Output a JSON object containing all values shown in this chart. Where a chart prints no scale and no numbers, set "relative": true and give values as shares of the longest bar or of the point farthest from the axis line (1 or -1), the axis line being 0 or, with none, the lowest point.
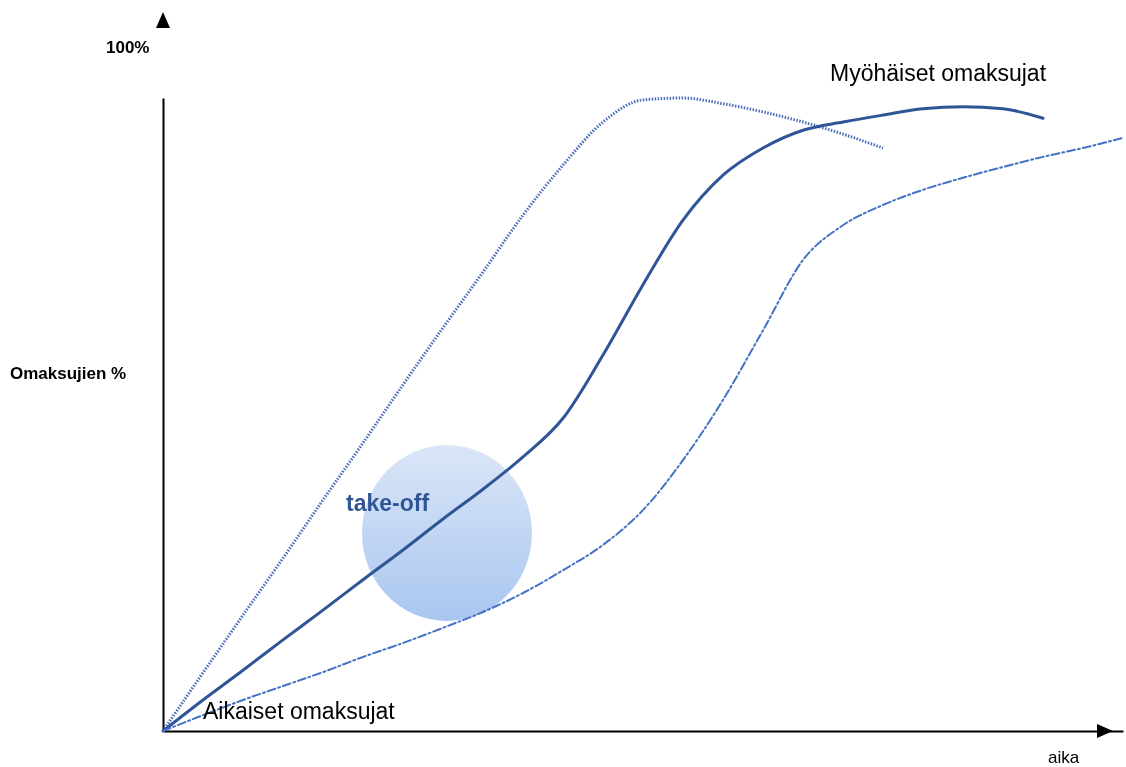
{
  "chart_data": {
    "type": "line",
    "relative": true,
    "ylabel": "Omaksujien %",
    "xlabel": "aika",
    "marker": "none",
    "annotations": [
      "100%",
      "Myöhäiset omaksujat",
      "Aikaiset omaksujat",
      "take-off"
    ],
    "categories": [
      null,
      null,
      null,
      null,
      null,
      null,
      null,
      null,
      null,
      null,
      null,
      null,
      null,
      null,
      null,
      null,
      null,
      null,
      null,
      null,
      null,
      null,
      null,
      null,
      null
    ],
    "series": [
      {
        "color": "#4a6fb8",
        "line_style": "dotted",
        "values": [
          0,
          0.092,
          0.183,
          0.273,
          0.365,
          0.455,
          0.547,
          0.637,
          0.725,
          0.815,
          0.894,
          0.962,
          0.997,
          1,
          0.991,
          0.978,
          0.962,
          0.943,
          0.921,
          null,
          null,
          null,
          null,
          null,
          null
        ]
      },
      {
        "color": "#2f5597",
        "line_style": "solid",
        "values": [
          0,
          0.049,
          0.096,
          0.144,
          0.191,
          0.239,
          0.286,
          0.335,
          0.382,
          0.433,
          0.494,
          0.594,
          0.705,
          0.807,
          0.878,
          0.921,
          0.949,
          0.962,
          0.973,
          0.983,
          0.986,
          0.983,
          0.968,
          null,
          null
        ]
      },
      {
        "color": "#4472c4",
        "line_style": "dashed",
        "values": [
          0,
          0.025,
          0.049,
          0.071,
          0.093,
          0.117,
          0.139,
          0.163,
          0.188,
          0.218,
          0.254,
          0.294,
          0.349,
          0.428,
          0.523,
          0.633,
          0.744,
          0.799,
          0.831,
          0.855,
          0.874,
          0.891,
          0.907,
          0.921,
          0.937
        ]
      }
    ]
  }
}
